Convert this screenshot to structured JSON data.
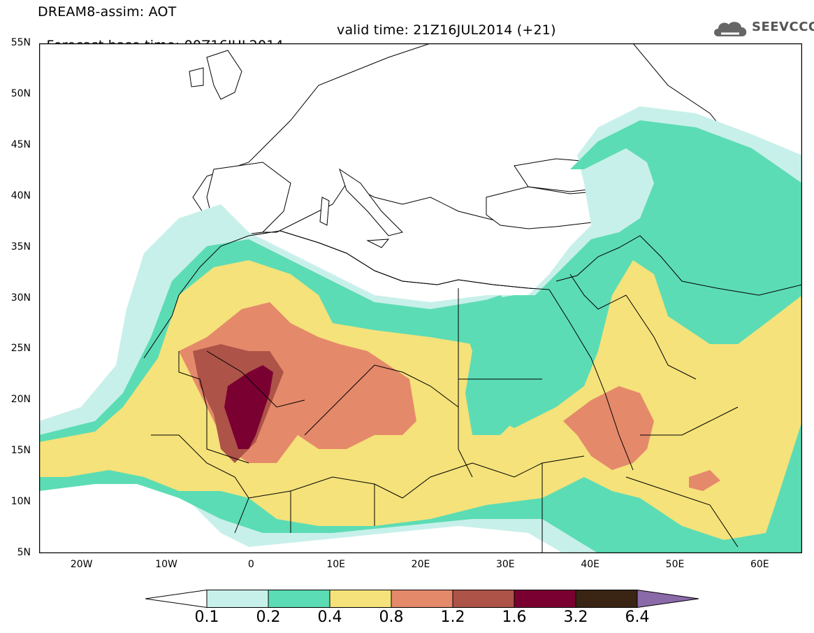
{
  "title": {
    "line1": "DREAM8-assim: AOT",
    "base": "Forecast base time: 00Z16JUL2014",
    "valid": "valid time: 21Z16JUL2014 (+21)"
  },
  "logo": {
    "text": "SEEVCCC",
    "icon": "cloud-icon"
  },
  "map": {
    "extent": {
      "lon": [
        -25,
        65
      ],
      "lat": [
        5,
        55
      ]
    },
    "lat_ticks": [
      "55N",
      "50N",
      "45N",
      "40N",
      "35N",
      "30N",
      "25N",
      "20N",
      "15N",
      "10N",
      "5N"
    ],
    "lon_ticks": [
      "20W",
      "10W",
      "0",
      "10E",
      "20E",
      "30E",
      "40E",
      "50E",
      "60E"
    ],
    "ocean_color": "#ffffff",
    "boundary_color": "#000000"
  },
  "colorbar": {
    "labels": [
      "0.1",
      "0.2",
      "0.4",
      "0.8",
      "1.2",
      "1.6",
      "3.2",
      "6.4"
    ],
    "colors": [
      "#ffffff",
      "#c8f0ea",
      "#5cdcb4",
      "#f5e27a",
      "#e5896b",
      "#ad5348",
      "#7b0032",
      "#3a2515",
      "#8a6aa8"
    ]
  }
}
